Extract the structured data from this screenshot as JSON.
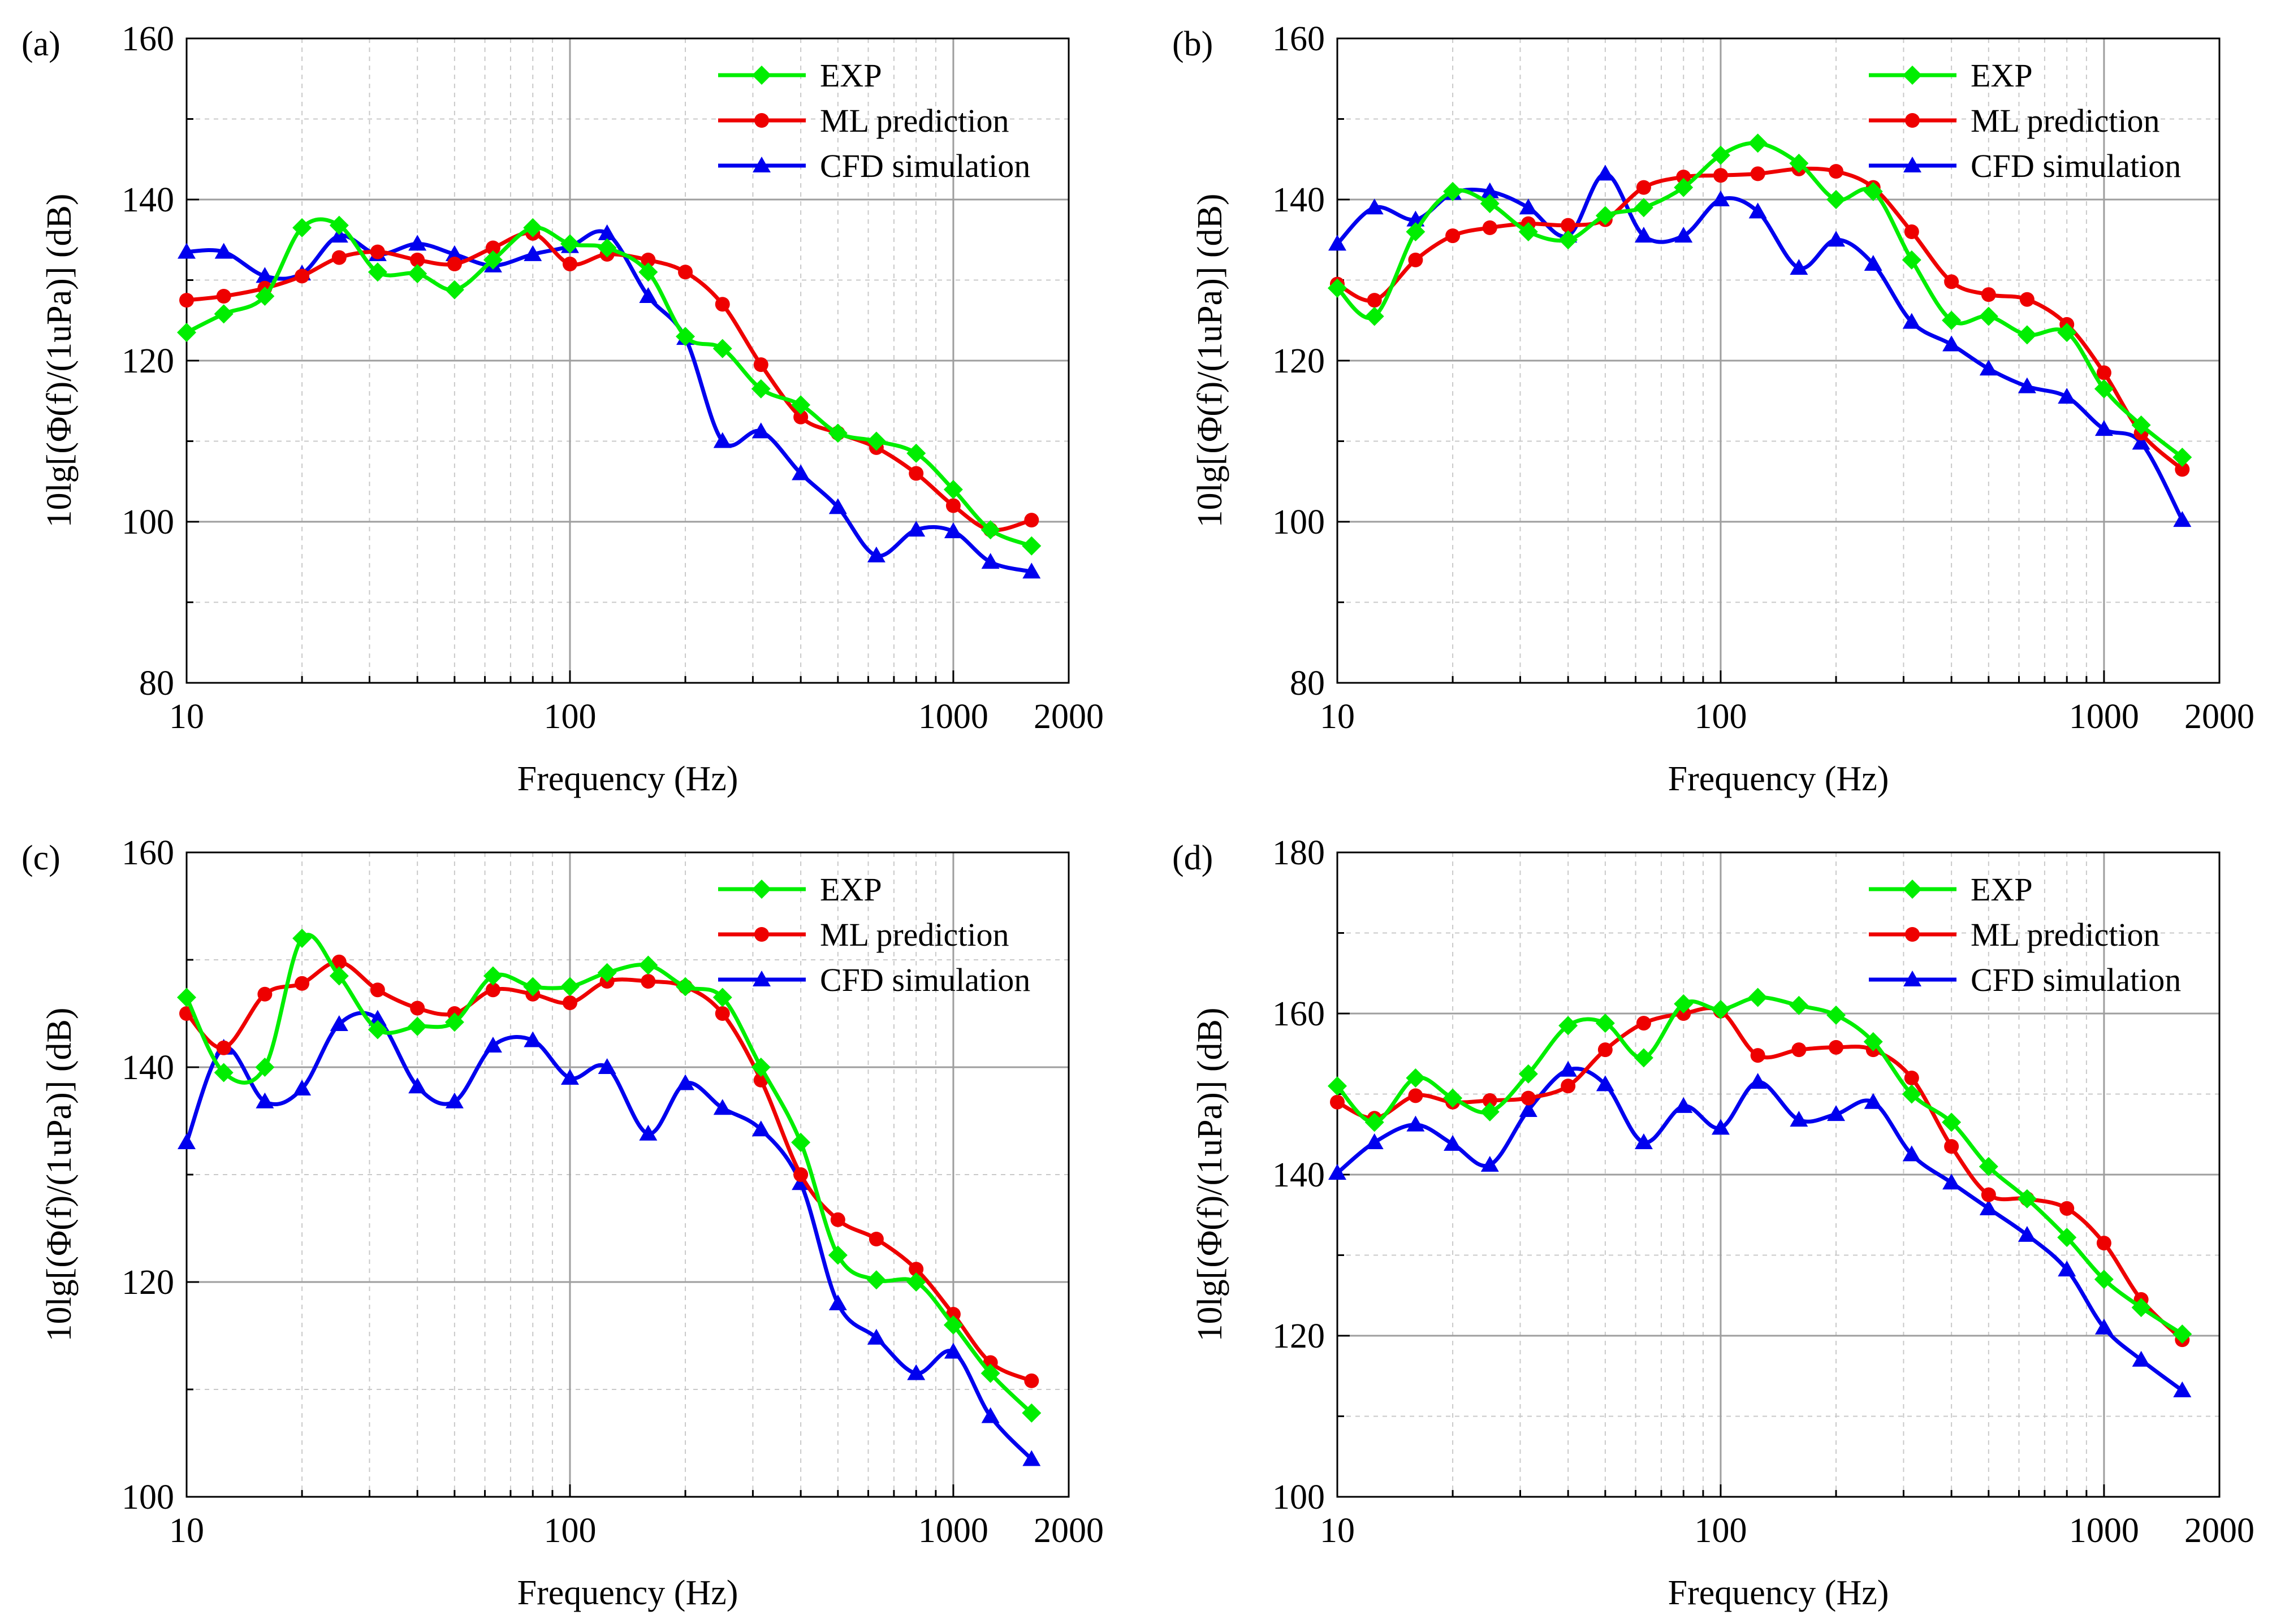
{
  "colors": {
    "exp": "#00ee00",
    "ml": "#ee0000",
    "cfd": "#0000ee"
  },
  "chart_data": [
    {
      "type": "line",
      "panel_label": "(a)",
      "xlabel": "Frequency (Hz)",
      "ylabel": "10lg[(Φ(f)/(1uPa)] (dB)",
      "xscale": "log",
      "xlim": [
        10,
        2000
      ],
      "ylim": [
        80,
        160
      ],
      "xticks": [
        10,
        100,
        1000,
        2000
      ],
      "xtick_labels": [
        "10",
        "100",
        "1000",
        "2000"
      ],
      "yticks": [
        80,
        100,
        120,
        140,
        160
      ],
      "ytick_labels": [
        "80",
        "100",
        "120",
        "140",
        "160"
      ],
      "legend_position": "top-right",
      "x": [
        10,
        12.5,
        16,
        20,
        25,
        31.5,
        40,
        50,
        63,
        80,
        100,
        125,
        160,
        200,
        250,
        315,
        400,
        500,
        630,
        800,
        1000,
        1250,
        1600
      ],
      "series": [
        {
          "name": "EXP",
          "marker": "diamond",
          "color_key": "exp",
          "values": [
            123.5,
            125.8,
            128.0,
            136.5,
            136.8,
            131.0,
            130.8,
            128.8,
            132.5,
            136.5,
            134.5,
            134.0,
            131.0,
            123.0,
            121.5,
            116.5,
            114.5,
            111.0,
            110.0,
            108.5,
            104.0,
            99.0,
            97.0
          ]
        },
        {
          "name": "ML prediction",
          "marker": "circle",
          "color_key": "ml",
          "values": [
            127.5,
            128.0,
            129.0,
            130.5,
            132.8,
            133.5,
            132.5,
            132.0,
            134.0,
            135.8,
            132.0,
            133.2,
            132.5,
            131.0,
            127.0,
            119.5,
            113.0,
            111.0,
            109.2,
            106.0,
            102.0,
            99.0,
            100.2
          ]
        },
        {
          "name": "CFD simulation",
          "marker": "triangle",
          "color_key": "cfd",
          "values": [
            133.5,
            133.5,
            130.5,
            130.8,
            135.5,
            133.2,
            134.5,
            133.2,
            131.8,
            133.2,
            134.2,
            135.8,
            128.0,
            122.8,
            110.0,
            111.2,
            106.0,
            101.8,
            95.8,
            99.0,
            98.8,
            95.0,
            93.8
          ]
        }
      ]
    },
    {
      "type": "line",
      "panel_label": "(b)",
      "xlabel": "Frequency (Hz)",
      "ylabel": "10lg[(Φ(f)/(1uPa)] (dB)",
      "xscale": "log",
      "xlim": [
        10,
        2000
      ],
      "ylim": [
        80,
        160
      ],
      "xticks": [
        10,
        100,
        1000,
        2000
      ],
      "xtick_labels": [
        "10",
        "100",
        "1000",
        "2000"
      ],
      "yticks": [
        80,
        100,
        120,
        140,
        160
      ],
      "ytick_labels": [
        "80",
        "100",
        "120",
        "140",
        "160"
      ],
      "legend_position": "top-right",
      "x": [
        10,
        12.5,
        16,
        20,
        25,
        31.5,
        40,
        50,
        63,
        80,
        100,
        125,
        160,
        200,
        250,
        315,
        400,
        500,
        630,
        800,
        1000,
        1250,
        1600
      ],
      "series": [
        {
          "name": "EXP",
          "marker": "diamond",
          "color_key": "exp",
          "values": [
            129.0,
            125.5,
            136.0,
            141.0,
            139.5,
            136.0,
            135.0,
            138.0,
            139.0,
            141.5,
            145.5,
            147.0,
            144.5,
            140.0,
            141.0,
            132.5,
            125.0,
            125.5,
            123.2,
            123.5,
            116.5,
            112.0,
            108.0
          ]
        },
        {
          "name": "ML prediction",
          "marker": "circle",
          "color_key": "ml",
          "values": [
            129.5,
            127.5,
            132.5,
            135.5,
            136.5,
            137.0,
            136.8,
            137.5,
            141.5,
            142.8,
            143.0,
            143.2,
            143.8,
            143.5,
            141.5,
            136.0,
            129.8,
            128.2,
            127.6,
            124.5,
            118.5,
            111.0,
            106.5
          ]
        },
        {
          "name": "CFD simulation",
          "marker": "triangle",
          "color_key": "cfd",
          "values": [
            134.5,
            139.0,
            137.5,
            140.8,
            141.0,
            139.0,
            135.5,
            143.2,
            135.5,
            135.5,
            140.0,
            138.5,
            131.5,
            135.0,
            132.0,
            124.8,
            122.0,
            119.0,
            116.8,
            115.5,
            111.5,
            109.8,
            100.2
          ]
        }
      ]
    },
    {
      "type": "line",
      "panel_label": "(c)",
      "xlabel": "Frequency (Hz)",
      "ylabel": "10lg[(Φ(f)/(1uPa)] (dB)",
      "xscale": "log",
      "xlim": [
        10,
        2000
      ],
      "ylim": [
        100,
        160
      ],
      "xticks": [
        10,
        100,
        1000,
        2000
      ],
      "xtick_labels": [
        "10",
        "100",
        "1000",
        "2000"
      ],
      "yticks": [
        100,
        120,
        140,
        160
      ],
      "ytick_labels": [
        "100",
        "120",
        "140",
        "160"
      ],
      "legend_position": "top-right",
      "x": [
        10,
        12.5,
        16,
        20,
        25,
        31.5,
        40,
        50,
        63,
        80,
        100,
        125,
        160,
        200,
        250,
        315,
        400,
        500,
        630,
        800,
        1000,
        1250,
        1600
      ],
      "series": [
        {
          "name": "EXP",
          "marker": "diamond",
          "color_key": "exp",
          "values": [
            146.5,
            139.5,
            140.0,
            152.0,
            148.5,
            143.5,
            143.8,
            144.2,
            148.5,
            147.5,
            147.5,
            148.8,
            149.5,
            147.5,
            146.5,
            140.0,
            133.0,
            122.5,
            120.2,
            120.0,
            116.0,
            111.5,
            107.8
          ]
        },
        {
          "name": "ML prediction",
          "marker": "circle",
          "color_key": "ml",
          "values": [
            145.0,
            141.8,
            146.8,
            147.8,
            149.8,
            147.2,
            145.5,
            145.0,
            147.2,
            146.8,
            146.0,
            148.0,
            148.0,
            147.5,
            145.0,
            138.8,
            130.0,
            125.8,
            124.0,
            121.2,
            117.0,
            112.5,
            110.8
          ]
        },
        {
          "name": "CFD simulation",
          "marker": "triangle",
          "color_key": "cfd",
          "values": [
            133.0,
            141.8,
            136.8,
            138.0,
            144.0,
            144.5,
            138.2,
            136.8,
            142.0,
            142.5,
            139.0,
            140.0,
            133.8,
            138.5,
            136.2,
            134.2,
            129.2,
            118.0,
            114.8,
            111.5,
            113.5,
            107.5,
            103.5
          ]
        }
      ]
    },
    {
      "type": "line",
      "panel_label": "(d)",
      "xlabel": "Frequency (Hz)",
      "ylabel": "10lg[(Φ(f)/(1uPa)] (dB)",
      "xscale": "log",
      "xlim": [
        10,
        2000
      ],
      "ylim": [
        100,
        180
      ],
      "xticks": [
        10,
        100,
        1000,
        2000
      ],
      "xtick_labels": [
        "10",
        "100",
        "1000",
        "2000"
      ],
      "yticks": [
        100,
        120,
        140,
        160,
        180
      ],
      "ytick_labels": [
        "100",
        "120",
        "140",
        "160",
        "180"
      ],
      "legend_position": "top-right",
      "x": [
        10,
        12.5,
        16,
        20,
        25,
        31.5,
        40,
        50,
        63,
        80,
        100,
        125,
        160,
        200,
        250,
        315,
        400,
        500,
        630,
        800,
        1000,
        1250,
        1600
      ],
      "series": [
        {
          "name": "EXP",
          "marker": "diamond",
          "color_key": "exp",
          "values": [
            151.0,
            146.5,
            152.0,
            149.5,
            147.8,
            152.5,
            158.5,
            158.8,
            154.5,
            161.2,
            160.5,
            162.0,
            161.0,
            159.8,
            156.5,
            150.0,
            146.5,
            141.0,
            137.0,
            132.2,
            127.0,
            123.5,
            120.2
          ]
        },
        {
          "name": "ML prediction",
          "marker": "circle",
          "color_key": "ml",
          "values": [
            149.0,
            147.0,
            149.8,
            149.0,
            149.2,
            149.5,
            151.0,
            155.5,
            158.8,
            160.0,
            160.3,
            154.8,
            155.5,
            155.8,
            155.5,
            152.0,
            143.5,
            137.5,
            137.0,
            135.8,
            131.5,
            124.5,
            119.5
          ]
        },
        {
          "name": "CFD simulation",
          "marker": "triangle",
          "color_key": "cfd",
          "values": [
            140.2,
            144.0,
            146.2,
            143.8,
            141.2,
            148.0,
            153.0,
            151.2,
            144.0,
            148.5,
            145.8,
            151.5,
            146.8,
            147.5,
            149.0,
            142.5,
            139.0,
            135.8,
            132.5,
            128.2,
            121.0,
            117.0,
            113.2
          ]
        }
      ]
    }
  ]
}
